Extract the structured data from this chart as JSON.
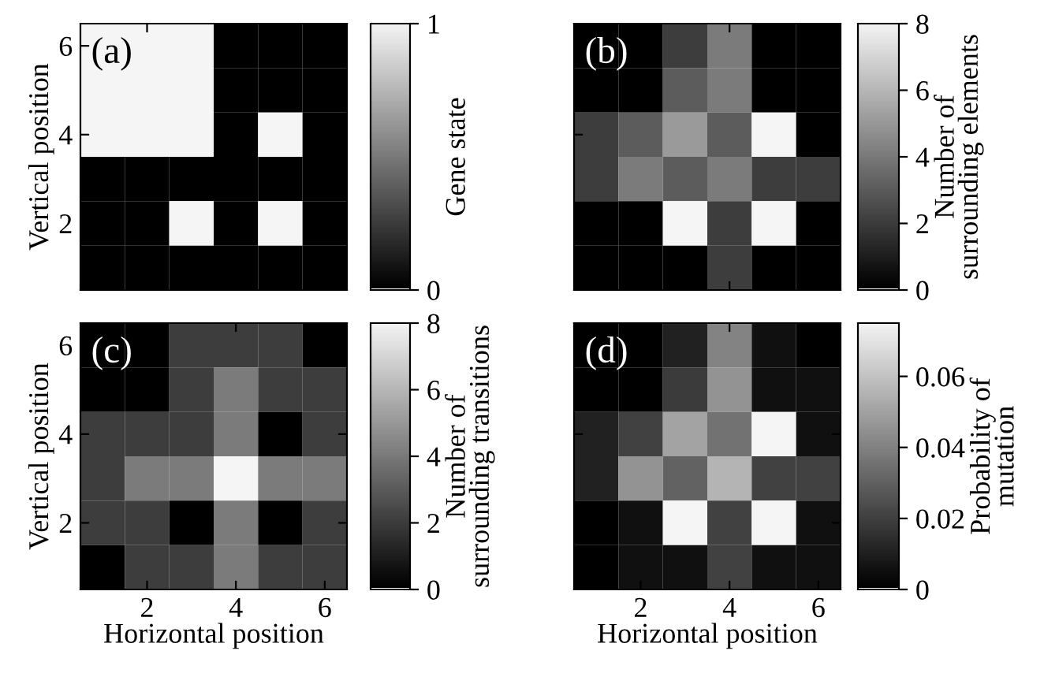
{
  "chart_data": [
    {
      "type": "heatmap",
      "x": [
        1,
        2,
        3,
        4,
        5,
        6
      ],
      "y": [
        6,
        5,
        4,
        3,
        2,
        1
      ],
      "xlim": [
        0.5,
        6.5
      ],
      "ylim": [
        0.5,
        6.5
      ],
      "xticks": [
        2,
        4,
        6
      ],
      "yticks": [
        2,
        4,
        6
      ],
      "ylabel": "Vertical position",
      "clabel": "Gene state",
      "clim": [
        0,
        1
      ],
      "cticks": [
        0,
        1
      ],
      "tick_labels": "y",
      "annotations": [
        "(a)"
      ],
      "cells": [
        [
          1,
          1,
          1,
          0,
          0,
          0
        ],
        [
          1,
          1,
          1,
          0,
          0,
          0
        ],
        [
          1,
          1,
          1,
          0,
          1,
          0
        ],
        [
          0,
          0,
          0,
          0,
          0,
          0
        ],
        [
          0,
          0,
          1,
          0,
          1,
          0
        ],
        [
          0,
          0,
          0,
          0,
          0,
          0
        ]
      ]
    },
    {
      "type": "heatmap",
      "x": [
        1,
        2,
        3,
        4,
        5,
        6
      ],
      "y": [
        6,
        5,
        4,
        3,
        2,
        1
      ],
      "xlim": [
        0.5,
        6.5
      ],
      "ylim": [
        0.5,
        6.5
      ],
      "xticks": [
        2,
        4,
        6
      ],
      "yticks": [
        2,
        4,
        6
      ],
      "clabel": "Number of\nsurrounding elements",
      "clim": [
        0,
        8
      ],
      "cticks": [
        0,
        2,
        4,
        6,
        8
      ],
      "tick_labels": false,
      "annotations": [
        "(b)"
      ],
      "cells": [
        [
          0,
          0,
          2,
          4,
          0,
          0
        ],
        [
          0,
          0,
          3,
          4,
          0,
          0
        ],
        [
          2,
          3,
          5,
          3,
          8,
          0
        ],
        [
          2,
          4,
          3,
          4,
          2,
          2
        ],
        [
          0,
          0,
          8,
          2,
          8,
          0
        ],
        [
          0,
          0,
          0,
          2,
          0,
          0
        ]
      ]
    },
    {
      "type": "heatmap",
      "x": [
        1,
        2,
        3,
        4,
        5,
        6
      ],
      "y": [
        6,
        5,
        4,
        3,
        2,
        1
      ],
      "xlim": [
        0.5,
        6.5
      ],
      "ylim": [
        0.5,
        6.5
      ],
      "xticks": [
        2,
        4,
        6
      ],
      "yticks": [
        2,
        4,
        6
      ],
      "xlabel": "Horizontal position",
      "ylabel": "Vertical position",
      "clabel": "Number of\nsurrounding transitions",
      "clim": [
        0,
        8
      ],
      "cticks": [
        0,
        2,
        4,
        6,
        8
      ],
      "annotations": [
        "(c)"
      ],
      "cells": [
        [
          0,
          0,
          2,
          2,
          2,
          0
        ],
        [
          0,
          0,
          2,
          4,
          2,
          2
        ],
        [
          2,
          2,
          2,
          4,
          0,
          2
        ],
        [
          2,
          4,
          4,
          8,
          4,
          4
        ],
        [
          2,
          2,
          0,
          4,
          0,
          2
        ],
        [
          0,
          2,
          2,
          4,
          2,
          2
        ]
      ]
    },
    {
      "type": "heatmap",
      "x": [
        1,
        2,
        3,
        4,
        5,
        6
      ],
      "y": [
        6,
        5,
        4,
        3,
        2,
        1
      ],
      "xlim": [
        0.5,
        6.5
      ],
      "ylim": [
        0.5,
        6.5
      ],
      "xticks": [
        2,
        4,
        6
      ],
      "yticks": [
        2,
        4,
        6
      ],
      "xlabel": "Horizontal position",
      "clabel": "Probability of\nmutation",
      "clim": [
        0,
        0.075
      ],
      "cticks": [
        0,
        0.02,
        0.04,
        0.06
      ],
      "tick_labels": "x",
      "annotations": [
        "(d)"
      ],
      "cells": [
        [
          0,
          0,
          0.01,
          0.04,
          0.005,
          0
        ],
        [
          0,
          0,
          0.018,
          0.045,
          0.005,
          0.005
        ],
        [
          0.01,
          0.02,
          0.05,
          0.035,
          0.075,
          0.005
        ],
        [
          0.01,
          0.045,
          0.03,
          0.055,
          0.02,
          0.02
        ],
        [
          0,
          0.005,
          0.075,
          0.02,
          0.075,
          0.005
        ],
        [
          0,
          0.005,
          0.005,
          0.02,
          0.005,
          0.005
        ]
      ]
    }
  ]
}
